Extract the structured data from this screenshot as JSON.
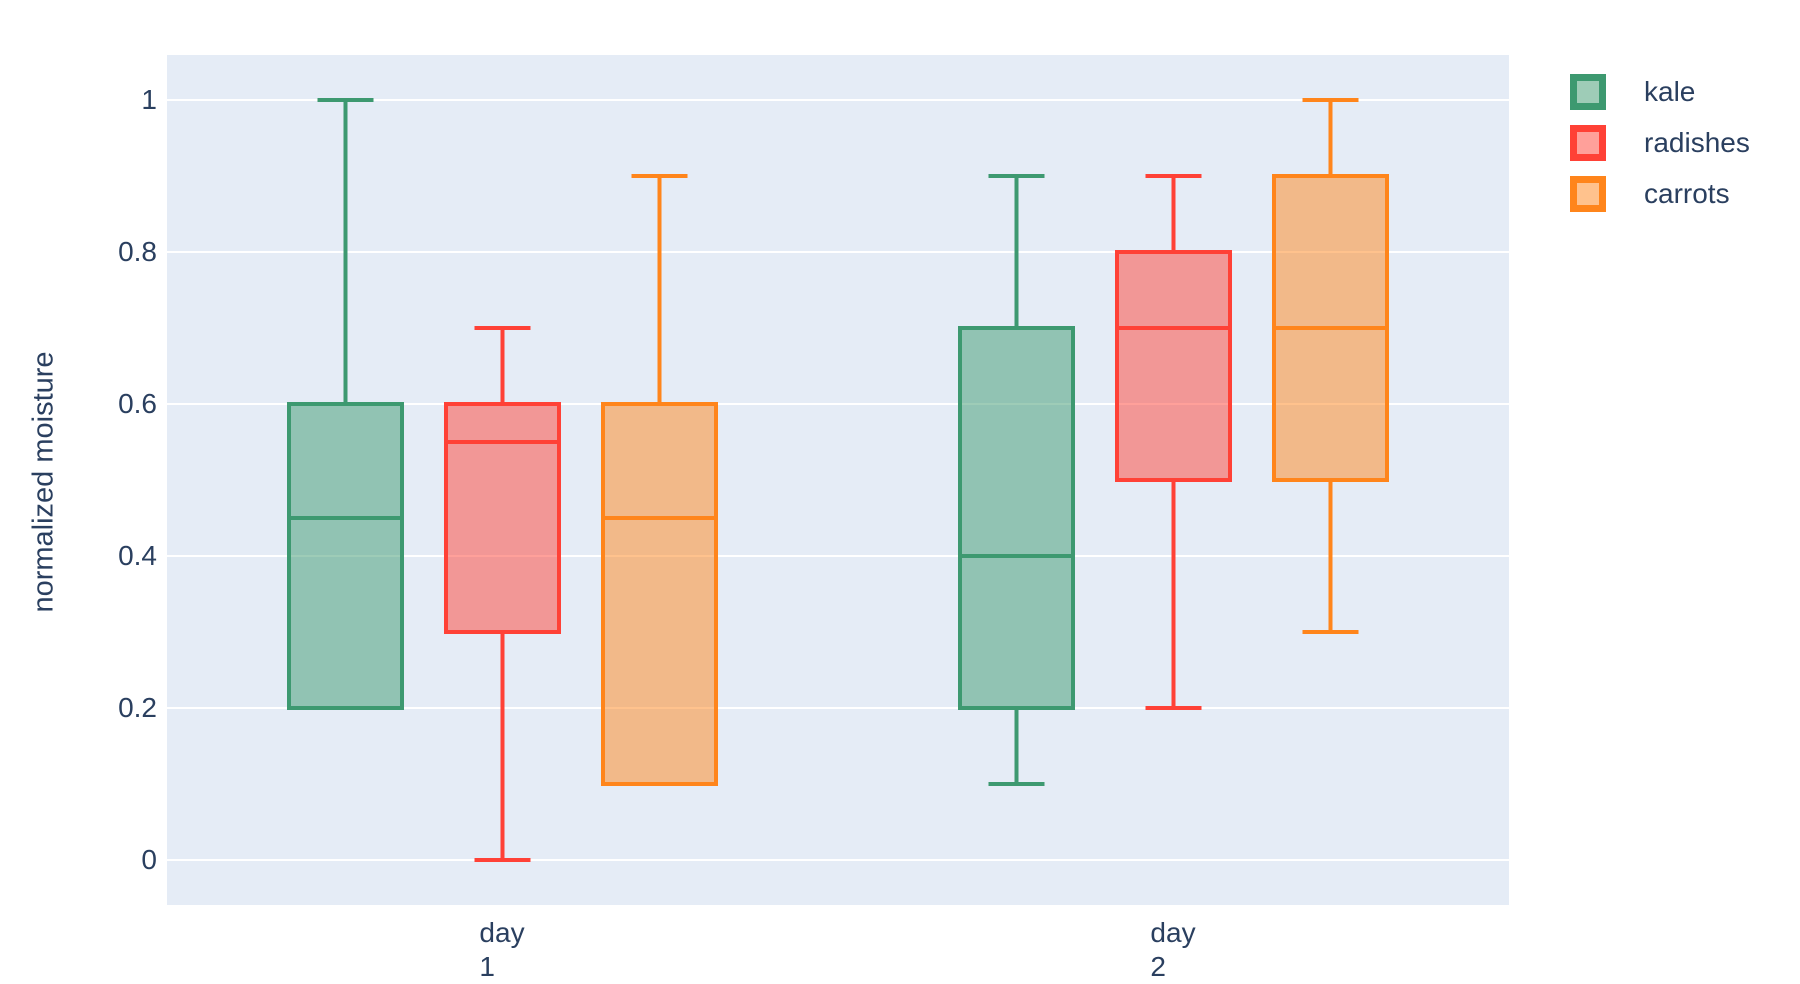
{
  "chart_data": {
    "type": "box",
    "title": "",
    "xlabel": "",
    "ylabel": "normalized moisture",
    "categories": [
      "day 1",
      "day 2"
    ],
    "yticks": [
      {
        "value": 0,
        "label": "0"
      },
      {
        "value": 0.2,
        "label": "0.2"
      },
      {
        "value": 0.4,
        "label": "0.4"
      },
      {
        "value": 0.6,
        "label": "0.6"
      },
      {
        "value": 0.8,
        "label": "0.8"
      },
      {
        "value": 1,
        "label": "1"
      }
    ],
    "ylim": [
      -0.06,
      1.06
    ],
    "grid": true,
    "legend_position": "top-right-outside",
    "colors": {
      "plot_bg": "#E5ECF6",
      "paper_bg": "#FFFFFF",
      "text": "#2A3F5F",
      "gridline": "#FFFFFF",
      "fill_opacity": 0.5
    },
    "series": [
      {
        "name": "kale",
        "color": "#3D9970",
        "boxes": [
          {
            "category": "day 1",
            "low": 0.2,
            "q1": 0.2,
            "median": 0.45,
            "q3": 0.6,
            "high": 1.0
          },
          {
            "category": "day 2",
            "low": 0.1,
            "q1": 0.2,
            "median": 0.4,
            "q3": 0.7,
            "high": 0.9
          }
        ]
      },
      {
        "name": "radishes",
        "color": "#FF4136",
        "boxes": [
          {
            "category": "day 1",
            "low": 0.0,
            "q1": 0.3,
            "median": 0.55,
            "q3": 0.6,
            "high": 0.7
          },
          {
            "category": "day 2",
            "low": 0.2,
            "q1": 0.5,
            "median": 0.7,
            "q3": 0.8,
            "high": 0.9
          }
        ]
      },
      {
        "name": "carrots",
        "color": "#FF851B",
        "boxes": [
          {
            "category": "day 1",
            "low": 0.1,
            "q1": 0.1,
            "median": 0.45,
            "q3": 0.6,
            "high": 0.9
          },
          {
            "category": "day 2",
            "low": 0.3,
            "q1": 0.5,
            "median": 0.7,
            "q3": 0.9,
            "high": 1.0
          }
        ]
      }
    ]
  }
}
